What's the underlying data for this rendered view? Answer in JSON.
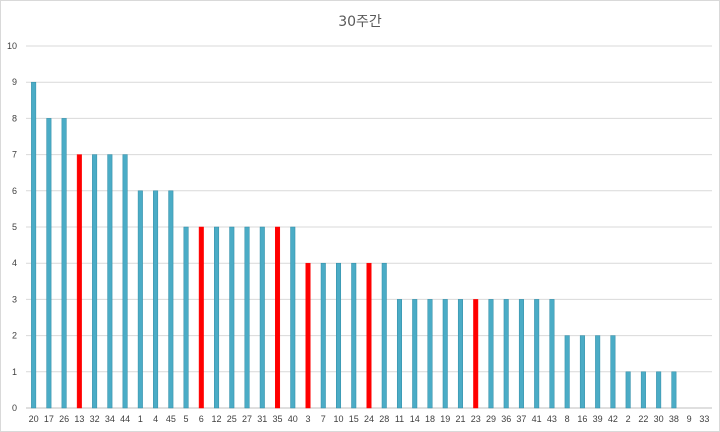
{
  "chart_data": {
    "type": "bar",
    "title": "30주간",
    "xlabel": "",
    "ylabel": "",
    "ylim": [
      0,
      10
    ],
    "yticks": [
      0,
      1,
      2,
      3,
      4,
      5,
      6,
      7,
      8,
      9,
      10
    ],
    "grid": true,
    "legend": "none",
    "categories": [
      "20",
      "17",
      "26",
      "13",
      "32",
      "34",
      "44",
      "1",
      "4",
      "45",
      "5",
      "6",
      "12",
      "25",
      "27",
      "31",
      "35",
      "40",
      "3",
      "7",
      "10",
      "15",
      "24",
      "28",
      "11",
      "14",
      "18",
      "19",
      "21",
      "23",
      "29",
      "36",
      "37",
      "41",
      "43",
      "8",
      "16",
      "39",
      "42",
      "2",
      "22",
      "30",
      "38",
      "9",
      "33"
    ],
    "values": [
      9,
      8,
      8,
      7,
      7,
      7,
      7,
      6,
      6,
      6,
      5,
      5,
      5,
      5,
      5,
      5,
      5,
      5,
      4,
      4,
      4,
      4,
      4,
      4,
      3,
      3,
      3,
      3,
      3,
      3,
      3,
      3,
      3,
      3,
      3,
      2,
      2,
      2,
      2,
      1,
      1,
      1,
      1,
      0,
      0
    ],
    "highlighted": [
      "13",
      "6",
      "35",
      "3",
      "24",
      "23"
    ],
    "colors": {
      "bar": "#4bacc6",
      "bar_edge": "#2e8ba5",
      "highlight": "#ff0000",
      "grid": "#d9d9d9",
      "axis": "#bfbfbf"
    }
  }
}
